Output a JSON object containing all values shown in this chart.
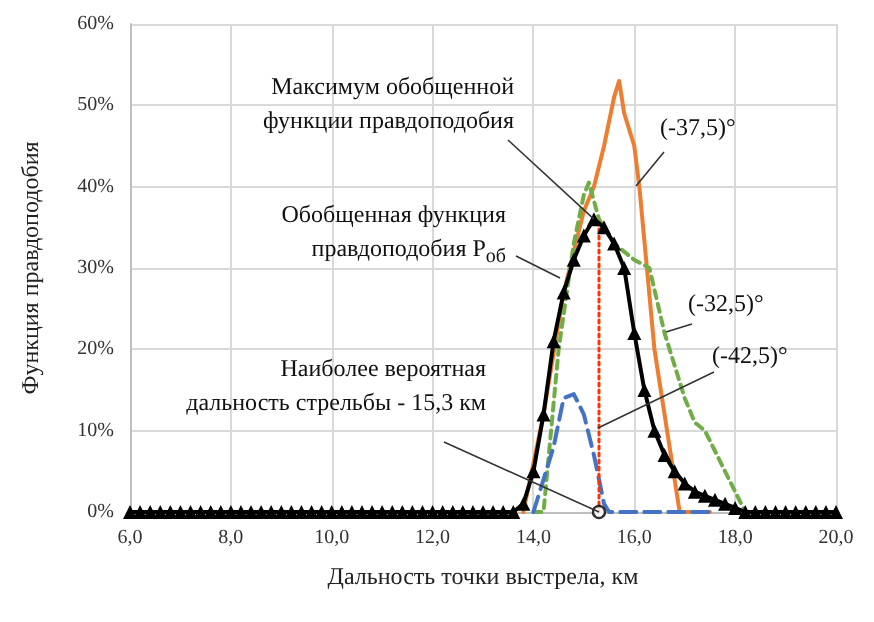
{
  "chart_data": {
    "type": "line",
    "xlabel": "Дальность точки выстрела, км",
    "ylabel": "Функция правдоподобия",
    "xlim": [
      6,
      20
    ],
    "xticks": [
      {
        "value": 6,
        "label": "6,0"
      },
      {
        "value": 8,
        "label": "8,0"
      },
      {
        "value": 10,
        "label": "10,0"
      },
      {
        "value": 12,
        "label": "12,0"
      },
      {
        "value": 14,
        "label": "14,0"
      },
      {
        "value": 16,
        "label": "16,0"
      },
      {
        "value": 18,
        "label": "18,0"
      },
      {
        "value": 20,
        "label": "20,0"
      }
    ],
    "ylim": [
      0,
      60
    ],
    "yticks": [
      {
        "value": 0,
        "label": "0%"
      },
      {
        "value": 10,
        "label": "10%"
      },
      {
        "value": 20,
        "label": "20%"
      },
      {
        "value": 30,
        "label": "30%"
      },
      {
        "value": 40,
        "label": "40%"
      },
      {
        "value": 50,
        "label": "50%"
      },
      {
        "value": 60,
        "label": "60%"
      }
    ],
    "grid": true,
    "legend": false,
    "series": [
      {
        "name": "(-37,5)°",
        "color": "#ed7d31",
        "line_style": "solid",
        "marker": "none",
        "x": [
          13.8,
          14.2,
          14.6,
          15,
          15.2,
          15.4,
          15.6,
          15.7,
          15.8,
          16,
          16.1,
          16.4,
          16.9,
          17.5
        ],
        "values": [
          0,
          12,
          27,
          37,
          40,
          45,
          51,
          53,
          49,
          45,
          40,
          20,
          0,
          0
        ]
      },
      {
        "name": "(-32,5)°",
        "color": "#70ad47",
        "line_style": "dashed",
        "marker": "none",
        "x": [
          14,
          14.2,
          14.5,
          14.8,
          15,
          15.1,
          15.3,
          15.6,
          16,
          16.3,
          16.6,
          17,
          17.2,
          17.4,
          17.8,
          18.2
        ],
        "values": [
          0,
          0,
          20,
          33,
          39,
          40.5,
          36,
          33,
          31,
          30,
          22,
          14,
          11,
          10,
          5,
          0
        ]
      },
      {
        "name": "(-42,5)°",
        "color": "#4472c4",
        "line_style": "longdash",
        "marker": "none",
        "x": [
          14,
          14.4,
          14.6,
          14.8,
          15,
          15.2,
          15.4,
          15.5,
          17.5
        ],
        "values": [
          0,
          8,
          14,
          14.5,
          12,
          7,
          1,
          0,
          0
        ]
      },
      {
        "name": "Обобщенная функция\nправдоподобия P$_{об}$",
        "color": "#000000",
        "line_style": "solid",
        "marker": "triangle",
        "x": [
          6,
          6.2,
          6.4,
          6.6,
          6.8,
          7,
          7.2,
          7.4,
          7.6,
          7.8,
          8,
          8.2,
          8.4,
          8.6,
          8.8,
          9,
          9.2,
          9.4,
          9.6,
          9.8,
          10,
          10.2,
          10.4,
          10.6,
          10.8,
          11,
          11.2,
          11.4,
          11.6,
          11.8,
          12,
          12.2,
          12.4,
          12.6,
          12.8,
          13,
          13.2,
          13.4,
          13.6,
          13.8,
          14,
          14.2,
          14.4,
          14.6,
          14.8,
          15,
          15.2,
          15.4,
          15.6,
          15.8,
          16,
          16.2,
          16.4,
          16.6,
          16.8,
          17,
          17.2,
          17.4,
          17.6,
          17.8,
          18,
          18.2,
          18.4,
          18.6,
          18.8,
          19,
          19.2,
          19.4,
          19.6,
          19.8,
          20
        ],
        "values": [
          0,
          0,
          0,
          0,
          0,
          0,
          0,
          0,
          0,
          0,
          0,
          0,
          0,
          0,
          0,
          0,
          0,
          0,
          0,
          0,
          0,
          0,
          0,
          0,
          0,
          0,
          0,
          0,
          0,
          0,
          0,
          0,
          0,
          0,
          0,
          0,
          0,
          0,
          0,
          1,
          5,
          12,
          21,
          27,
          31,
          34,
          36,
          35,
          33,
          30,
          22,
          15,
          10,
          7,
          5,
          3.5,
          2.5,
          2,
          1.5,
          1,
          0.5,
          0,
          0,
          0,
          0,
          0,
          0,
          0,
          0,
          0,
          0
        ]
      },
      {
        "color": "#ff3300",
        "line_style": "dotted",
        "marker": "none",
        "x": [
          15.3,
          15.3
        ],
        "values": [
          0,
          36
        ]
      },
      {
        "type": "scatter",
        "color": "#000000",
        "marker": "circle",
        "x": [
          15.3
        ],
        "values": [
          0
        ]
      }
    ],
    "annotations": [
      {
        "text": "Максимум обобщенной\nфункции правдоподобия",
        "x": 15.2,
        "y": 36
      },
      {
        "text": "Наиболее вероятная\nдальность стрельбы - 15,3 км",
        "x": 15.3,
        "y": 0
      }
    ]
  }
}
